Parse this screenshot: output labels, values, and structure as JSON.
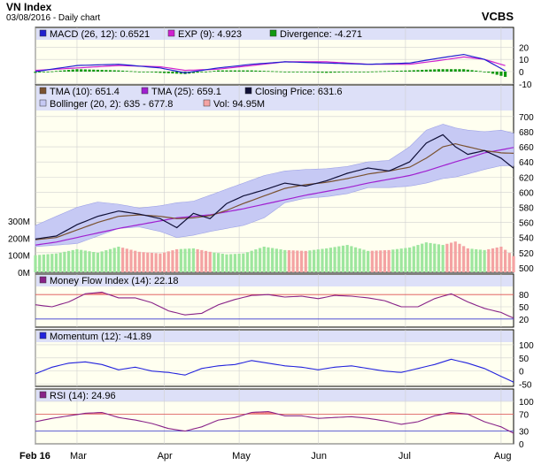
{
  "header": {
    "title": "VN Index",
    "subtitle": "03/08/2016 - Daily chart",
    "source": "VCBS"
  },
  "colors": {
    "panel_bg": "#fffff0",
    "legend_bg": "#dde0f8",
    "band": "#c6c9f4",
    "grid": "#d0d0d0",
    "macd": "#2020d0",
    "exp": "#d020d0",
    "divergence": "#119911",
    "tma10": "#7a5230",
    "tma25": "#a020d0",
    "close": "#101038",
    "vol_up": "#9ee69e",
    "vol_down": "#f4a3a3",
    "mfi": "#882288",
    "momentum": "#2222dd",
    "rsi": "#882288",
    "threshold": "#e05050",
    "low_line": "#3a3ad0"
  },
  "x_axis": {
    "labels": [
      {
        "text": "Feb 16",
        "day": 0
      },
      {
        "text": "Mar",
        "day": 10
      },
      {
        "text": "Apr",
        "day": 31
      },
      {
        "text": "May",
        "day": 49
      },
      {
        "text": "Jun",
        "day": 68
      },
      {
        "text": "Jul",
        "day": 89
      },
      {
        "text": "Aug",
        "day": 112
      }
    ]
  },
  "chart_data": [
    {
      "type": "line",
      "legend": [
        "MACD (26, 12): 0.6521",
        "EXP (9): 4.923",
        "Divergence: -4.271"
      ],
      "ylim": [
        -13,
        26
      ],
      "yticks": [
        20,
        10,
        0,
        -10
      ],
      "ytick_labels": [
        "20",
        "10",
        "0",
        "-10"
      ],
      "days": [
        0,
        10,
        20,
        30,
        36,
        44,
        52,
        60,
        70,
        80,
        90,
        97,
        103,
        108,
        113
      ],
      "series": [
        {
          "name": "MACD (26, 12)",
          "values": [
            0,
            5,
            6,
            3,
            -1,
            3,
            6,
            8,
            7,
            6,
            7,
            11,
            14,
            10,
            0.65
          ]
        },
        {
          "name": "EXP (9)",
          "values": [
            1,
            3,
            5,
            4,
            1,
            2,
            5,
            8,
            8,
            6,
            6,
            9,
            12,
            10,
            4.9
          ]
        },
        {
          "name": "Divergence",
          "values": [
            -1,
            2,
            1,
            -1,
            -2,
            1,
            1,
            0,
            -1,
            0,
            1,
            2,
            2,
            0,
            -4.3
          ]
        }
      ]
    },
    {
      "type": "line",
      "legend": [
        "TMA (10): 651.4",
        "TMA (25): 659.1",
        "Closing Price: 631.6",
        "Bollinger (20, 2): 635 - 677.8",
        "Vol: 94.95M"
      ],
      "ylim": [
        494,
        708
      ],
      "yticks": [
        700,
        680,
        660,
        640,
        620,
        600,
        580,
        560,
        540,
        520,
        500
      ],
      "ytick_labels": [
        "700",
        "680",
        "660",
        "640",
        "620",
        "600",
        "580",
        "560",
        "540",
        "520",
        "500"
      ],
      "volume_ticks": [
        {
          "label": "300M",
          "value": 300
        },
        {
          "label": "200M",
          "value": 200
        },
        {
          "label": "100M",
          "value": 100
        },
        {
          "label": "0M",
          "value": 0
        }
      ],
      "days": [
        0,
        5,
        10,
        15,
        20,
        25,
        30,
        34,
        38,
        42,
        46,
        50,
        55,
        60,
        65,
        70,
        75,
        80,
        85,
        90,
        94,
        98,
        101,
        104,
        108,
        112,
        115
      ],
      "series": [
        {
          "name": "Closing Price",
          "values": [
            538,
            542,
            557,
            568,
            575,
            571,
            565,
            553,
            572,
            565,
            585,
            595,
            603,
            612,
            608,
            615,
            625,
            632,
            628,
            640,
            665,
            676,
            660,
            650,
            655,
            645,
            631.6
          ]
        },
        {
          "name": "TMA (10)",
          "values": [
            537,
            540,
            550,
            560,
            568,
            570,
            568,
            565,
            566,
            569,
            576,
            585,
            595,
            605,
            610,
            613,
            618,
            624,
            628,
            633,
            645,
            660,
            664,
            660,
            655,
            652,
            651.4
          ]
        },
        {
          "name": "TMA (25)",
          "values": [
            530,
            534,
            540,
            546,
            552,
            557,
            562,
            566,
            568,
            570,
            574,
            578,
            584,
            590,
            596,
            601,
            606,
            612,
            617,
            622,
            628,
            635,
            640,
            645,
            652,
            656,
            659.1
          ]
        },
        {
          "name": "Bollinger Upper",
          "values": [
            556,
            568,
            580,
            587,
            584,
            579,
            582,
            586,
            588,
            596,
            604,
            612,
            622,
            628,
            630,
            631,
            634,
            640,
            642,
            660,
            682,
            690,
            685,
            682,
            680,
            682,
            677.8
          ]
        },
        {
          "name": "Bollinger Lower",
          "values": [
            528,
            530,
            532,
            542,
            552,
            554,
            548,
            540,
            543,
            548,
            552,
            556,
            566,
            586,
            592,
            594,
            598,
            606,
            606,
            608,
            612,
            618,
            620,
            624,
            630,
            635,
            635
          ]
        },
        {
          "name": "Vol (M)",
          "values": [
            100,
            110,
            135,
            115,
            150,
            120,
            110,
            135,
            140,
            120,
            105,
            110,
            150,
            130,
            125,
            140,
            160,
            125,
            130,
            145,
            175,
            160,
            180,
            140,
            130,
            150,
            94.95
          ]
        }
      ]
    },
    {
      "type": "line",
      "legend": [
        "Money Flow Index (14): 22.18"
      ],
      "ylim": [
        0,
        100
      ],
      "yticks": [
        80,
        50,
        20
      ],
      "ytick_labels": [
        "80",
        "50",
        "20"
      ],
      "thresholds": [
        80,
        20
      ],
      "days": [
        0,
        4,
        8,
        12,
        16,
        20,
        24,
        28,
        32,
        36,
        40,
        44,
        48,
        52,
        56,
        60,
        64,
        68,
        72,
        76,
        80,
        84,
        88,
        92,
        96,
        100,
        104,
        108,
        112,
        115
      ],
      "series": [
        {
          "name": "Money Flow Index (14)",
          "values": [
            55,
            50,
            62,
            82,
            86,
            72,
            72,
            60,
            40,
            30,
            34,
            55,
            68,
            78,
            80,
            74,
            76,
            70,
            78,
            76,
            72,
            65,
            50,
            50,
            70,
            82,
            62,
            46,
            36,
            22.18
          ]
        }
      ]
    },
    {
      "type": "line",
      "legend": [
        "Momentum (12): -41.89"
      ],
      "ylim": [
        -58,
        110
      ],
      "yticks": [
        100,
        50,
        0,
        -50
      ],
      "ytick_labels": [
        "100",
        "50",
        "0",
        "-50"
      ],
      "days": [
        0,
        4,
        8,
        12,
        16,
        20,
        24,
        28,
        32,
        36,
        40,
        44,
        48,
        52,
        56,
        60,
        64,
        68,
        72,
        76,
        80,
        84,
        88,
        92,
        96,
        100,
        104,
        108,
        112,
        115
      ],
      "series": [
        {
          "name": "Momentum (12)",
          "values": [
            -10,
            15,
            30,
            35,
            25,
            5,
            15,
            0,
            -5,
            -15,
            10,
            20,
            25,
            40,
            30,
            20,
            15,
            5,
            15,
            20,
            10,
            0,
            -5,
            10,
            25,
            45,
            30,
            10,
            -20,
            -41.89
          ]
        }
      ]
    },
    {
      "type": "line",
      "legend": [
        "RSI (14): 24.96"
      ],
      "ylim": [
        0,
        100
      ],
      "yticks": [
        100,
        70,
        30,
        0
      ],
      "ytick_labels": [
        "100",
        "70",
        "30",
        "0"
      ],
      "thresholds": [
        70,
        30
      ],
      "days": [
        0,
        4,
        8,
        12,
        16,
        20,
        24,
        28,
        32,
        36,
        40,
        44,
        48,
        52,
        56,
        60,
        64,
        68,
        72,
        76,
        80,
        84,
        88,
        92,
        96,
        100,
        104,
        108,
        112,
        115
      ],
      "series": [
        {
          "name": "RSI (14)",
          "values": [
            52,
            60,
            66,
            72,
            74,
            62,
            56,
            48,
            36,
            30,
            40,
            56,
            62,
            74,
            76,
            66,
            66,
            60,
            62,
            64,
            60,
            54,
            46,
            52,
            66,
            74,
            70,
            52,
            40,
            24.96
          ]
        }
      ]
    }
  ]
}
